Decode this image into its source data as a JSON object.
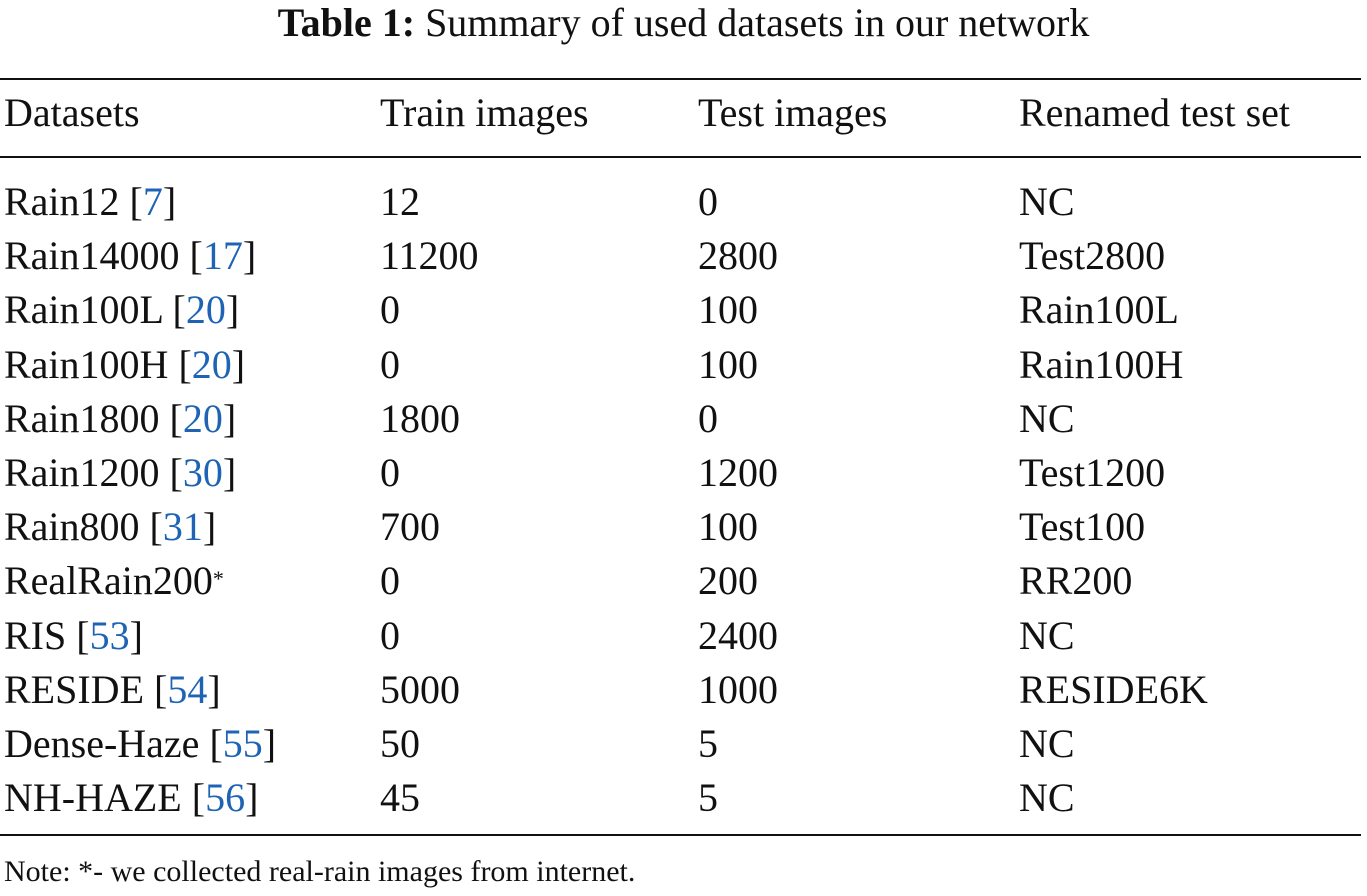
{
  "caption": {
    "label": "Table 1:",
    "text": "Summary of used datasets in our network"
  },
  "table": {
    "headers": [
      "Datasets",
      "Train images",
      "Test images",
      "Renamed test set"
    ],
    "rows": [
      {
        "name": "Rain12",
        "ref": "7",
        "marker": "",
        "train": "12",
        "test": "0",
        "renamed": "NC"
      },
      {
        "name": "Rain14000",
        "ref": "17",
        "marker": "",
        "train": "11200",
        "test": "2800",
        "renamed": "Test2800"
      },
      {
        "name": "Rain100L",
        "ref": "20",
        "marker": "",
        "train": "0",
        "test": "100",
        "renamed": "Rain100L"
      },
      {
        "name": "Rain100H",
        "ref": "20",
        "marker": "",
        "train": "0",
        "test": "100",
        "renamed": "Rain100H"
      },
      {
        "name": "Rain1800",
        "ref": "20",
        "marker": "",
        "train": "1800",
        "test": "0",
        "renamed": "NC"
      },
      {
        "name": "Rain1200",
        "ref": "30",
        "marker": "",
        "train": "0",
        "test": "1200",
        "renamed": "Test1200"
      },
      {
        "name": "Rain800",
        "ref": "31",
        "marker": "",
        "train": "700",
        "test": "100",
        "renamed": "Test100"
      },
      {
        "name": "RealRain200",
        "ref": "",
        "marker": "*",
        "train": "0",
        "test": "200",
        "renamed": "RR200"
      },
      {
        "name": "RIS",
        "ref": "53",
        "marker": "",
        "train": "0",
        "test": "2400",
        "renamed": "NC"
      },
      {
        "name": "RESIDE",
        "ref": "54",
        "marker": "",
        "train": "5000",
        "test": "1000",
        "renamed": "RESIDE6K"
      },
      {
        "name": "Dense-Haze",
        "ref": "55",
        "marker": "",
        "train": "50",
        "test": "5",
        "renamed": "NC"
      },
      {
        "name": "NH-HAZE",
        "ref": "56",
        "marker": "",
        "train": "45",
        "test": "5",
        "renamed": "NC"
      }
    ]
  },
  "note": "Note: *- we collected real-rain images from internet.",
  "colors": {
    "text": "#111111",
    "reference_link": "#1f64b4"
  }
}
